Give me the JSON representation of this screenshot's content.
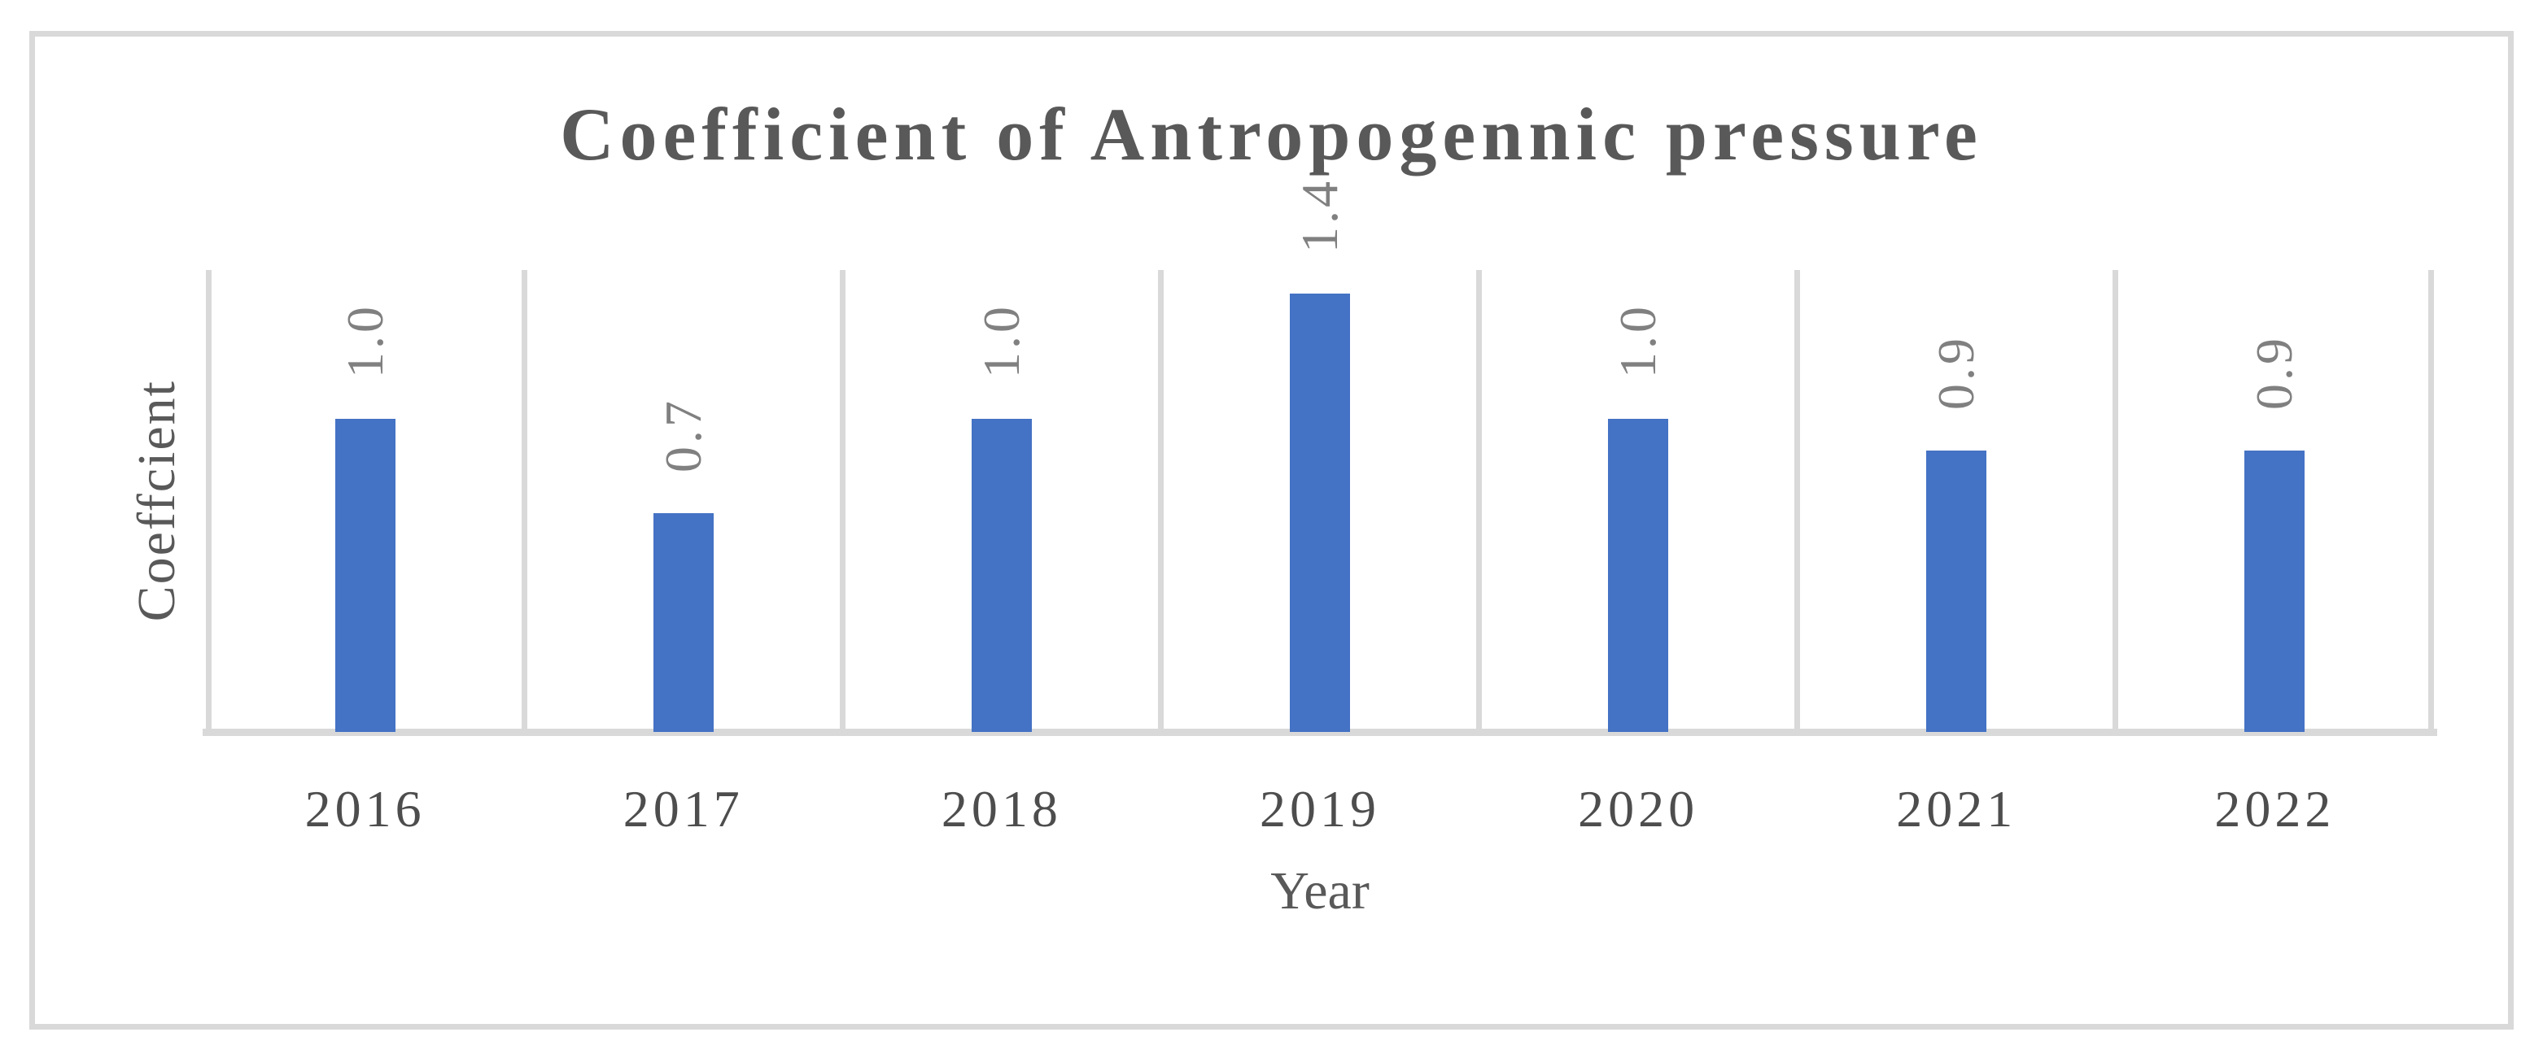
{
  "chart_data": {
    "type": "bar",
    "title": "Coefficient of Antropogennic pressure",
    "xlabel": "Year",
    "ylabel": "Coeffcient",
    "categories": [
      "2016",
      "2017",
      "2018",
      "2019",
      "2020",
      "2021",
      "2022"
    ],
    "values": [
      1.0,
      0.7,
      1.0,
      1.4,
      1.0,
      0.9,
      0.9
    ],
    "bar_labels": [
      "1.0",
      "0.7",
      "1.0",
      "1.4",
      "1.0",
      "0.9",
      "0.9"
    ],
    "ylim": [
      0,
      1.45
    ],
    "grid": "vertical-category-boundaries",
    "legend": "none",
    "data_label_rotation": "90deg-bottom-to-top",
    "colors": {
      "bar": "#4472C4",
      "gridline": "#D9D9D9",
      "axis_line": "#D9D9D9",
      "frame_border": "#D9D9D9",
      "title_text": "#595959",
      "tick_label_text": "#4D4D4D",
      "data_label_text": "#808080",
      "axis_title_text": "#595959",
      "background": "#FFFFFF"
    }
  }
}
